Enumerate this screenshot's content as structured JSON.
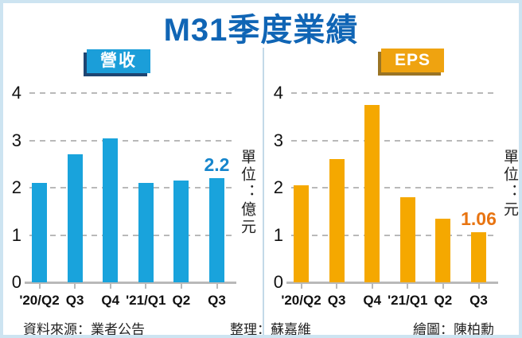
{
  "title": "M31季度業績",
  "unit_left": "單位：億元",
  "unit_right": "單位：元",
  "footer": {
    "source": "資料來源：業者公告",
    "editor": "整理：蘇嘉維",
    "artist": "繪圖：陳柏勳"
  },
  "colors": {
    "title_blue": "#1065b5",
    "revenue_bar": "#19a3dc",
    "revenue_badge": "#1b9ed9",
    "eps_bar": "#f5a800",
    "eps_badge": "#efa310",
    "annotation_blue": "#1585cc",
    "annotation_orange": "#e87411",
    "grid_gray": "#b9b9b9",
    "frame_light_blue": "#cde4f1"
  },
  "chart_data": [
    {
      "type": "bar",
      "title": "營收",
      "unit_label": "單位：億元",
      "categories": [
        "'20/Q2",
        "Q3",
        "Q4",
        "'21/Q1",
        "Q2",
        "Q3"
      ],
      "values": [
        2.1,
        2.7,
        3.05,
        2.1,
        2.15,
        2.2
      ],
      "bar_color": "#19a3dc",
      "annotation": {
        "text": "2.2",
        "color": "#1585cc",
        "on_index": 5
      },
      "ylim": [
        0,
        4
      ],
      "ytick_step": 1,
      "grid": "horizontal-dashed",
      "legend_position": "top-badge"
    },
    {
      "type": "bar",
      "title": "EPS",
      "unit_label": "單位：元",
      "categories": [
        "'20/Q2",
        "Q3",
        "Q4",
        "'21/Q1",
        "Q2",
        "Q3"
      ],
      "values": [
        2.05,
        2.6,
        3.75,
        1.8,
        1.35,
        1.06
      ],
      "bar_color": "#f5a800",
      "annotation": {
        "text": "1.06",
        "color": "#e87411",
        "on_index": 5
      },
      "ylim": [
        0,
        4
      ],
      "ytick_step": 1,
      "grid": "horizontal-dashed",
      "legend_position": "top-badge"
    }
  ]
}
